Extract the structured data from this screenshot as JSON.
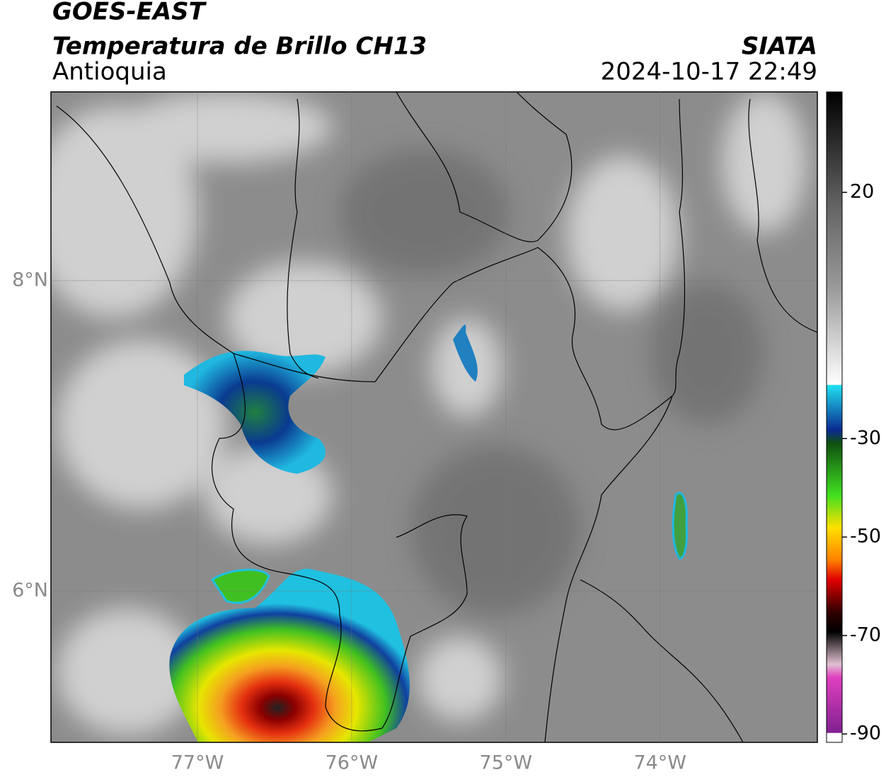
{
  "header": {
    "title": "GOES-EAST",
    "subtitle": "Temperatura de Brillo CH13",
    "region": "Antioquia",
    "source": "SIATA",
    "datetime": "2024-10-17 22:49"
  },
  "map": {
    "lon_range": [
      -77.95,
      -72.98
    ],
    "lat_range": [
      5.025,
      9.216
    ],
    "lat_ticks": [
      {
        "value": 8,
        "label": "8°N"
      },
      {
        "value": 6,
        "label": "6°N"
      }
    ],
    "lon_ticks": [
      {
        "value": -77,
        "label": "77°W"
      },
      {
        "value": -76,
        "label": "76°W"
      },
      {
        "value": -75,
        "label": "75°W"
      },
      {
        "value": -74,
        "label": "74°W"
      }
    ]
  },
  "colorbar": {
    "range": [
      -91.7,
      40.4
    ],
    "ticks": [
      20,
      -30,
      -50,
      -70,
      -90
    ]
  }
}
